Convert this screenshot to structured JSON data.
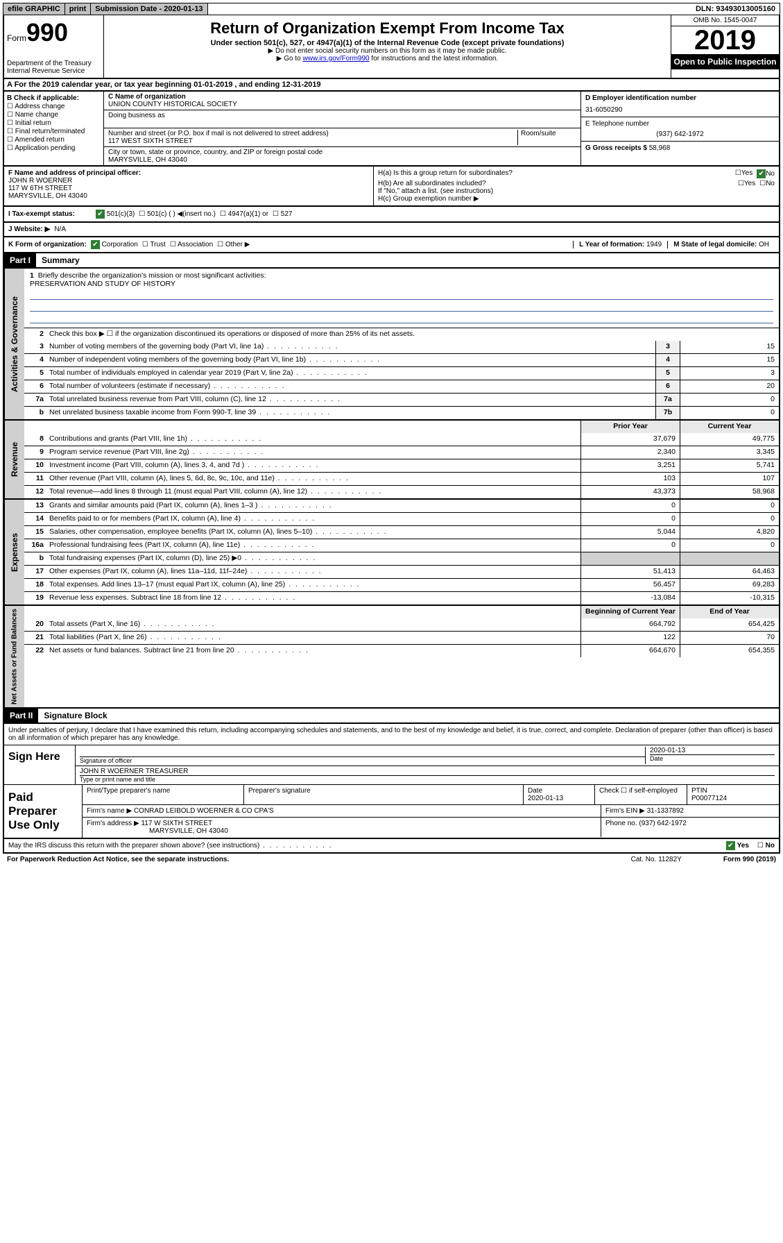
{
  "topbar": {
    "efile": "efile GRAPHIC",
    "print": "print",
    "submission_label": "Submission Date - ",
    "submission_date": "2020-01-13",
    "dln_label": "DLN: ",
    "dln": "93493013005160"
  },
  "header": {
    "form_label": "Form",
    "form_number": "990",
    "dept": "Department of the Treasury",
    "irs": "Internal Revenue Service",
    "title": "Return of Organization Exempt From Income Tax",
    "subtitle": "Under section 501(c), 527, or 4947(a)(1) of the Internal Revenue Code (except private foundations)",
    "note1": "▶ Do not enter social security numbers on this form as it may be made public.",
    "note2_pre": "▶ Go to ",
    "note2_link": "www.irs.gov/Form990",
    "note2_post": " for instructions and the latest information.",
    "omb": "OMB No. 1545-0047",
    "year": "2019",
    "open_public": "Open to Public Inspection"
  },
  "row_a": {
    "text": "A For the 2019 calendar year, or tax year beginning 01-01-2019   , and ending 12-31-2019"
  },
  "section_b": {
    "label": "B Check if applicable:",
    "items": [
      "Address change",
      "Name change",
      "Initial return",
      "Final return/terminated",
      "Amended return",
      "Application pending"
    ]
  },
  "section_c": {
    "name_label": "C Name of organization",
    "name": "UNION COUNTY HISTORICAL SOCIETY",
    "dba_label": "Doing business as",
    "addr_label": "Number and street (or P.O. box if mail is not delivered to street address)",
    "room_label": "Room/suite",
    "addr": "117 WEST SIXTH STREET",
    "city_label": "City or town, state or province, country, and ZIP or foreign postal code",
    "city": "MARYSVILLE, OH  43040"
  },
  "section_d": {
    "label": "D Employer identification number",
    "ein": "31-6050290"
  },
  "section_e": {
    "label": "E Telephone number",
    "phone": "(937) 642-1972"
  },
  "section_g": {
    "label": "G Gross receipts $ ",
    "amount": "58,968"
  },
  "section_f": {
    "label": "F  Name and address of principal officer:",
    "name": "JOHN R WOERNER",
    "addr1": "117 W 6TH STREET",
    "addr2": "MARYSVILLE, OH  43040"
  },
  "section_h": {
    "ha": "H(a)  Is this a group return for subordinates?",
    "hb": "H(b)  Are all subordinates included?",
    "hb_note": "If \"No,\" attach a list. (see instructions)",
    "hc": "H(c)  Group exemption number ▶",
    "yes": "Yes",
    "no": "No"
  },
  "section_i": {
    "label": "I  Tax-exempt status:",
    "opts": [
      "501(c)(3)",
      "501(c) (  ) ◀(insert no.)",
      "4947(a)(1) or",
      "527"
    ]
  },
  "section_j": {
    "label": "J  Website: ▶",
    "value": "N/A"
  },
  "section_k": {
    "label": "K Form of organization:",
    "corp": "Corporation",
    "trust": "Trust",
    "assoc": "Association",
    "other": "Other ▶",
    "l_label": "L Year of formation: ",
    "l_value": "1949",
    "m_label": "M State of legal domicile: ",
    "m_value": "OH"
  },
  "part1": {
    "header": "Part I",
    "title": "Summary",
    "line1_label": "Briefly describe the organization's mission or most significant activities:",
    "line1_value": "PRESERVATION AND STUDY OF HISTORY",
    "line2": "Check this box ▶ ☐  if the organization discontinued its operations or disposed of more than 25% of its net assets.",
    "tabs": {
      "ag": "Activities & Governance",
      "rev": "Revenue",
      "exp": "Expenses",
      "net": "Net Assets or Fund Balances"
    },
    "cols": {
      "prior": "Prior Year",
      "current": "Current Year",
      "begin": "Beginning of Current Year",
      "end": "End of Year"
    },
    "lines_single": [
      {
        "n": "3",
        "d": "Number of voting members of the governing body (Part VI, line 1a)",
        "box": "3",
        "v": "15"
      },
      {
        "n": "4",
        "d": "Number of independent voting members of the governing body (Part VI, line 1b)",
        "box": "4",
        "v": "15"
      },
      {
        "n": "5",
        "d": "Total number of individuals employed in calendar year 2019 (Part V, line 2a)",
        "box": "5",
        "v": "3"
      },
      {
        "n": "6",
        "d": "Total number of volunteers (estimate if necessary)",
        "box": "6",
        "v": "20"
      },
      {
        "n": "7a",
        "d": "Total unrelated business revenue from Part VIII, column (C), line 12",
        "box": "7a",
        "v": "0"
      },
      {
        "n": "b",
        "d": "Net unrelated business taxable income from Form 990-T, line 39",
        "box": "7b",
        "v": "0"
      }
    ],
    "lines_rev": [
      {
        "n": "8",
        "d": "Contributions and grants (Part VIII, line 1h)",
        "p": "37,679",
        "c": "49,775"
      },
      {
        "n": "9",
        "d": "Program service revenue (Part VIII, line 2g)",
        "p": "2,340",
        "c": "3,345"
      },
      {
        "n": "10",
        "d": "Investment income (Part VIII, column (A), lines 3, 4, and 7d )",
        "p": "3,251",
        "c": "5,741"
      },
      {
        "n": "11",
        "d": "Other revenue (Part VIII, column (A), lines 5, 6d, 8c, 9c, 10c, and 11e)",
        "p": "103",
        "c": "107"
      },
      {
        "n": "12",
        "d": "Total revenue—add lines 8 through 11 (must equal Part VIII, column (A), line 12)",
        "p": "43,373",
        "c": "58,968"
      }
    ],
    "lines_exp": [
      {
        "n": "13",
        "d": "Grants and similar amounts paid (Part IX, column (A), lines 1–3 )",
        "p": "0",
        "c": "0"
      },
      {
        "n": "14",
        "d": "Benefits paid to or for members (Part IX, column (A), line 4)",
        "p": "0",
        "c": "0"
      },
      {
        "n": "15",
        "d": "Salaries, other compensation, employee benefits (Part IX, column (A), lines 5–10)",
        "p": "5,044",
        "c": "4,820"
      },
      {
        "n": "16a",
        "d": "Professional fundraising fees (Part IX, column (A), line 11e)",
        "p": "0",
        "c": "0"
      },
      {
        "n": "b",
        "d": "Total fundraising expenses (Part IX, column (D), line 25) ▶0",
        "p": "",
        "c": ""
      },
      {
        "n": "17",
        "d": "Other expenses (Part IX, column (A), lines 11a–11d, 11f–24e)",
        "p": "51,413",
        "c": "64,463"
      },
      {
        "n": "18",
        "d": "Total expenses. Add lines 13–17 (must equal Part IX, column (A), line 25)",
        "p": "56,457",
        "c": "69,283"
      },
      {
        "n": "19",
        "d": "Revenue less expenses. Subtract line 18 from line 12",
        "p": "-13,084",
        "c": "-10,315"
      }
    ],
    "lines_net": [
      {
        "n": "20",
        "d": "Total assets (Part X, line 16)",
        "p": "664,792",
        "c": "654,425"
      },
      {
        "n": "21",
        "d": "Total liabilities (Part X, line 26)",
        "p": "122",
        "c": "70"
      },
      {
        "n": "22",
        "d": "Net assets or fund balances. Subtract line 21 from line 20",
        "p": "664,670",
        "c": "654,355"
      }
    ]
  },
  "part2": {
    "header": "Part II",
    "title": "Signature Block",
    "perjury": "Under penalties of perjury, I declare that I have examined this return, including accompanying schedules and statements, and to the best of my knowledge and belief, it is true, correct, and complete. Declaration of preparer (other than officer) is based on all information of which preparer has any knowledge.",
    "sign_here": "Sign Here",
    "sig_officer": "Signature of officer",
    "sig_date": "2020-01-13",
    "date_label": "Date",
    "officer_name": "JOHN R WOERNER  TREASURER",
    "type_name_label": "Type or print name and title",
    "paid_prep": "Paid Preparer Use Only",
    "prep_name_label": "Print/Type preparer's name",
    "prep_sig_label": "Preparer's signature",
    "prep_date": "2020-01-13",
    "check_self": "Check ☐ if self-employed",
    "ptin_label": "PTIN",
    "ptin": "P00077124",
    "firm_name_label": "Firm's name    ▶",
    "firm_name": "CONRAD LEIBOLD WOERNER & CO CPA'S",
    "firm_ein_label": "Firm's EIN ▶",
    "firm_ein": "31-1337892",
    "firm_addr_label": "Firm's address ▶",
    "firm_addr1": "117 W SIXTH STREET",
    "firm_addr2": "MARYSVILLE, OH  43040",
    "phone_label": "Phone no. ",
    "phone": "(937) 642-1972"
  },
  "discuss": {
    "text": "May the IRS discuss this return with the preparer shown above? (see instructions)",
    "yes": "Yes",
    "no": "No"
  },
  "footer": {
    "pra": "For Paperwork Reduction Act Notice, see the separate instructions.",
    "cat": "Cat. No. 11282Y",
    "form": "Form 990 (2019)"
  },
  "colors": {
    "black": "#000000",
    "grey_btn": "#c0c0c0",
    "grey_tab": "#d0d0d0",
    "link": "#0000cc",
    "green_check": "#2e7d32",
    "rule_blue": "#4060a0"
  }
}
